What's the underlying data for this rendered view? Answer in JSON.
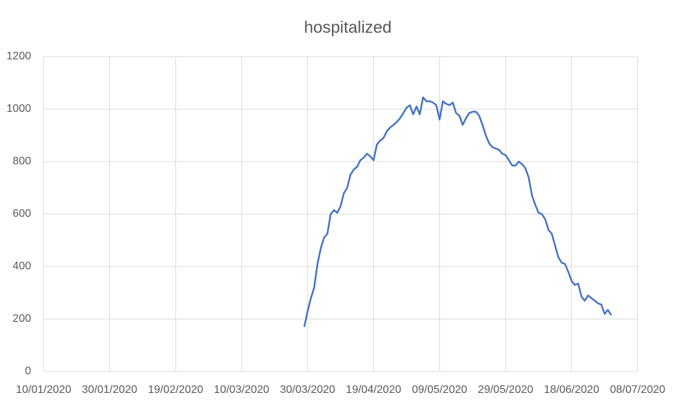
{
  "chart_data": {
    "type": "line",
    "title": "hospitalized",
    "x": [
      "29/03/2020",
      "30/03/2020",
      "31/03/2020",
      "01/04/2020",
      "02/04/2020",
      "03/04/2020",
      "04/04/2020",
      "05/04/2020",
      "06/04/2020",
      "07/04/2020",
      "08/04/2020",
      "09/04/2020",
      "10/04/2020",
      "11/04/2020",
      "12/04/2020",
      "13/04/2020",
      "14/04/2020",
      "15/04/2020",
      "16/04/2020",
      "17/04/2020",
      "18/04/2020",
      "19/04/2020",
      "20/04/2020",
      "21/04/2020",
      "22/04/2020",
      "23/04/2020",
      "24/04/2020",
      "25/04/2020",
      "26/04/2020",
      "27/04/2020",
      "28/04/2020",
      "29/04/2020",
      "30/04/2020",
      "01/05/2020",
      "02/05/2020",
      "03/05/2020",
      "04/05/2020",
      "05/05/2020",
      "06/05/2020",
      "07/05/2020",
      "08/05/2020",
      "09/05/2020",
      "10/05/2020",
      "11/05/2020",
      "12/05/2020",
      "13/05/2020",
      "14/05/2020",
      "15/05/2020",
      "16/05/2020",
      "17/05/2020",
      "18/05/2020",
      "19/05/2020",
      "20/05/2020",
      "21/05/2020",
      "22/05/2020",
      "23/05/2020",
      "24/05/2020",
      "25/05/2020",
      "26/05/2020",
      "27/05/2020",
      "28/05/2020",
      "29/05/2020",
      "30/05/2020",
      "31/05/2020",
      "01/06/2020",
      "02/06/2020",
      "03/06/2020",
      "04/06/2020",
      "05/06/2020",
      "06/06/2020",
      "07/06/2020",
      "08/06/2020",
      "09/06/2020",
      "10/06/2020",
      "11/06/2020",
      "12/06/2020",
      "13/06/2020",
      "14/06/2020",
      "15/06/2020",
      "16/06/2020",
      "17/06/2020",
      "18/06/2020",
      "19/06/2020",
      "20/06/2020",
      "21/06/2020",
      "22/06/2020",
      "23/06/2020",
      "24/06/2020",
      "25/06/2020",
      "26/06/2020",
      "27/06/2020",
      "28/06/2020",
      "29/06/2020",
      "30/06/2020"
    ],
    "values": [
      170,
      230,
      280,
      320,
      410,
      470,
      510,
      525,
      600,
      615,
      605,
      630,
      680,
      700,
      750,
      770,
      780,
      805,
      815,
      830,
      820,
      805,
      865,
      880,
      890,
      915,
      930,
      940,
      950,
      965,
      985,
      1005,
      1015,
      980,
      1010,
      980,
      1045,
      1030,
      1030,
      1025,
      1015,
      960,
      1030,
      1020,
      1015,
      1025,
      985,
      975,
      940,
      965,
      985,
      990,
      990,
      975,
      940,
      900,
      870,
      855,
      850,
      845,
      830,
      825,
      805,
      785,
      785,
      800,
      790,
      775,
      740,
      670,
      635,
      605,
      600,
      580,
      540,
      525,
      480,
      435,
      415,
      410,
      380,
      345,
      330,
      335,
      285,
      270,
      290,
      280,
      270,
      260,
      255,
      220,
      235,
      215
    ],
    "color": "#4472c4",
    "xlim": [
      "10/01/2020",
      "08/07/2020"
    ],
    "xticks": [
      "10/01/2020",
      "30/01/2020",
      "19/02/2020",
      "10/03/2020",
      "30/03/2020",
      "19/04/2020",
      "09/05/2020",
      "29/05/2020",
      "18/06/2020",
      "08/07/2020"
    ],
    "ylim": [
      0,
      1200
    ],
    "yticks": [
      0,
      200,
      400,
      600,
      800,
      1000,
      1200
    ],
    "grid": true
  }
}
